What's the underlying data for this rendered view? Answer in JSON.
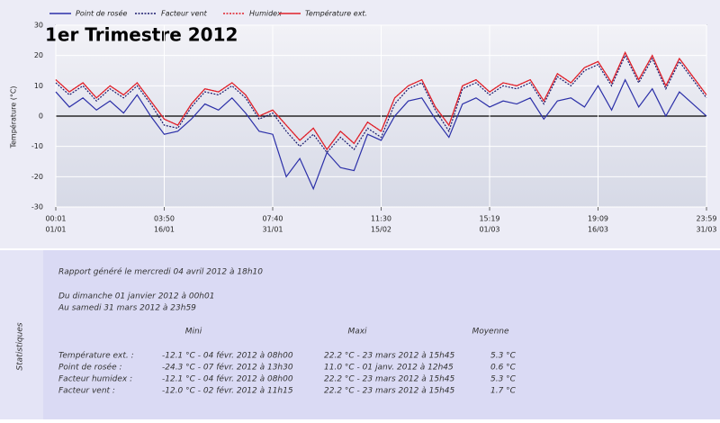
{
  "chart_data": {
    "type": "line",
    "title": "1er Trimestre 2012",
    "y_label": "Température (°C)",
    "x": [
      0,
      0.125,
      0.25,
      0.375,
      0.5,
      0.625,
      0.75,
      0.875,
      1,
      1.125,
      1.25,
      1.375,
      1.5,
      1.625,
      1.75,
      1.875,
      2,
      2.125,
      2.25,
      2.375,
      2.5,
      2.625,
      2.75,
      2.875,
      3,
      3.125,
      3.25,
      3.375,
      3.5,
      3.625,
      3.75,
      3.875,
      4,
      4.125,
      4.25,
      4.375,
      4.5,
      4.625,
      4.75,
      4.875,
      5,
      5.125,
      5.25,
      5.375,
      5.5,
      5.625,
      5.75,
      5.875,
      6
    ],
    "xlim": [
      0,
      6
    ],
    "xticks": [
      {
        "value": 0,
        "label": "00:01",
        "date": "01/01"
      },
      {
        "value": 1,
        "label": "03:50",
        "date": "16/01"
      },
      {
        "value": 2,
        "label": "07:40",
        "date": "31/01"
      },
      {
        "value": 3,
        "label": "11:30",
        "date": "15/02"
      },
      {
        "value": 4,
        "label": "15:19",
        "date": "01/03"
      },
      {
        "value": 5,
        "label": "19:09",
        "date": "16/03"
      },
      {
        "value": 6,
        "label": "23:59",
        "date": "31/03"
      }
    ],
    "ylim": [
      -30,
      30
    ],
    "yticks": [
      -30,
      -20,
      -10,
      0,
      10,
      20,
      30
    ],
    "grid": true,
    "series": [
      {
        "name": "Point de rosée",
        "color": "#2b2fa8",
        "dash": "solid",
        "values": [
          8,
          3,
          6,
          2,
          5,
          1,
          7,
          0,
          -6,
          -5,
          -1,
          4,
          2,
          6,
          1,
          -5,
          -6,
          -20,
          -14,
          -24,
          -12,
          -17,
          -18,
          -6,
          -8,
          0,
          5,
          6,
          -1,
          -7,
          4,
          6,
          3,
          5,
          4,
          6,
          -1,
          5,
          6,
          3,
          10,
          2,
          12,
          3,
          9,
          0,
          8,
          4,
          0
        ]
      },
      {
        "name": "Facteur vent",
        "color": "#1a1a6e",
        "dash": "dotted",
        "values": [
          11,
          7,
          10,
          5,
          9,
          6,
          10,
          4,
          -3,
          -4,
          3,
          8,
          7,
          10,
          6,
          -1,
          1,
          -5,
          -10,
          -6,
          -12,
          -7,
          -11,
          -4,
          -7,
          4,
          9,
          11,
          2,
          -5,
          9,
          11,
          7,
          10,
          9,
          11,
          4,
          13,
          10,
          15,
          17,
          10,
          20,
          11,
          19,
          9,
          18,
          12,
          6
        ]
      },
      {
        "name": "Humidex",
        "color": "#e0202a",
        "dash": "dotted",
        "values": [
          12,
          8,
          11,
          6,
          10,
          7,
          11,
          5,
          -1,
          -3,
          4,
          9,
          8,
          11,
          7,
          0,
          2,
          -3,
          -8,
          -4,
          -11,
          -5,
          -9,
          -2,
          -5,
          6,
          10,
          12,
          3,
          -3,
          10,
          12,
          8,
          11,
          10,
          12,
          5,
          14,
          11,
          16,
          18,
          11,
          21,
          12,
          20,
          10,
          19,
          13,
          7
        ]
      },
      {
        "name": "Température ext.",
        "color": "#e0202a",
        "dash": "solid",
        "values": [
          12,
          8,
          11,
          6,
          10,
          7,
          11,
          5,
          -1,
          -3,
          4,
          9,
          8,
          11,
          7,
          0,
          2,
          -3,
          -8,
          -4,
          -11,
          -5,
          -9,
          -2,
          -5,
          6,
          10,
          12,
          3,
          -3,
          10,
          12,
          8,
          11,
          10,
          12,
          5,
          14,
          11,
          16,
          18,
          11,
          21,
          12,
          20,
          10,
          19,
          13,
          7
        ]
      }
    ]
  },
  "statistics": {
    "side_label": "Statistiques",
    "report": "Rapport généré le mercredi 04 avril 2012 à 18h10",
    "from": "Du dimanche 01 janvier 2012 à 00h01",
    "to": "Au samedi 31 mars 2012 à 23h59",
    "headers": [
      "Mini",
      "Maxi",
      "Moyenne"
    ],
    "rows": [
      [
        "Température ext. :",
        "-12.1 °C - 04 févr. 2012 à 08h00",
        "22.2 °C - 23 mars 2012 à 15h45",
        "5.3 °C"
      ],
      [
        "Point de rosée :",
        "-24.3 °C - 07 févr. 2012 à 13h30",
        "11.0 °C - 01 janv. 2012 à 12h45",
        "0.6 °C"
      ],
      [
        "Facteur humidex :",
        "-12.1 °C - 04 févr. 2012 à 08h00",
        "22.2 °C - 23 mars 2012 à 15h45",
        "5.3 °C"
      ],
      [
        "Facteur vent :",
        "-12.0 °C - 02 févr. 2012 à 11h15",
        "22.2 °C - 23 mars 2012 à 15h45",
        "1.7 °C"
      ]
    ]
  }
}
